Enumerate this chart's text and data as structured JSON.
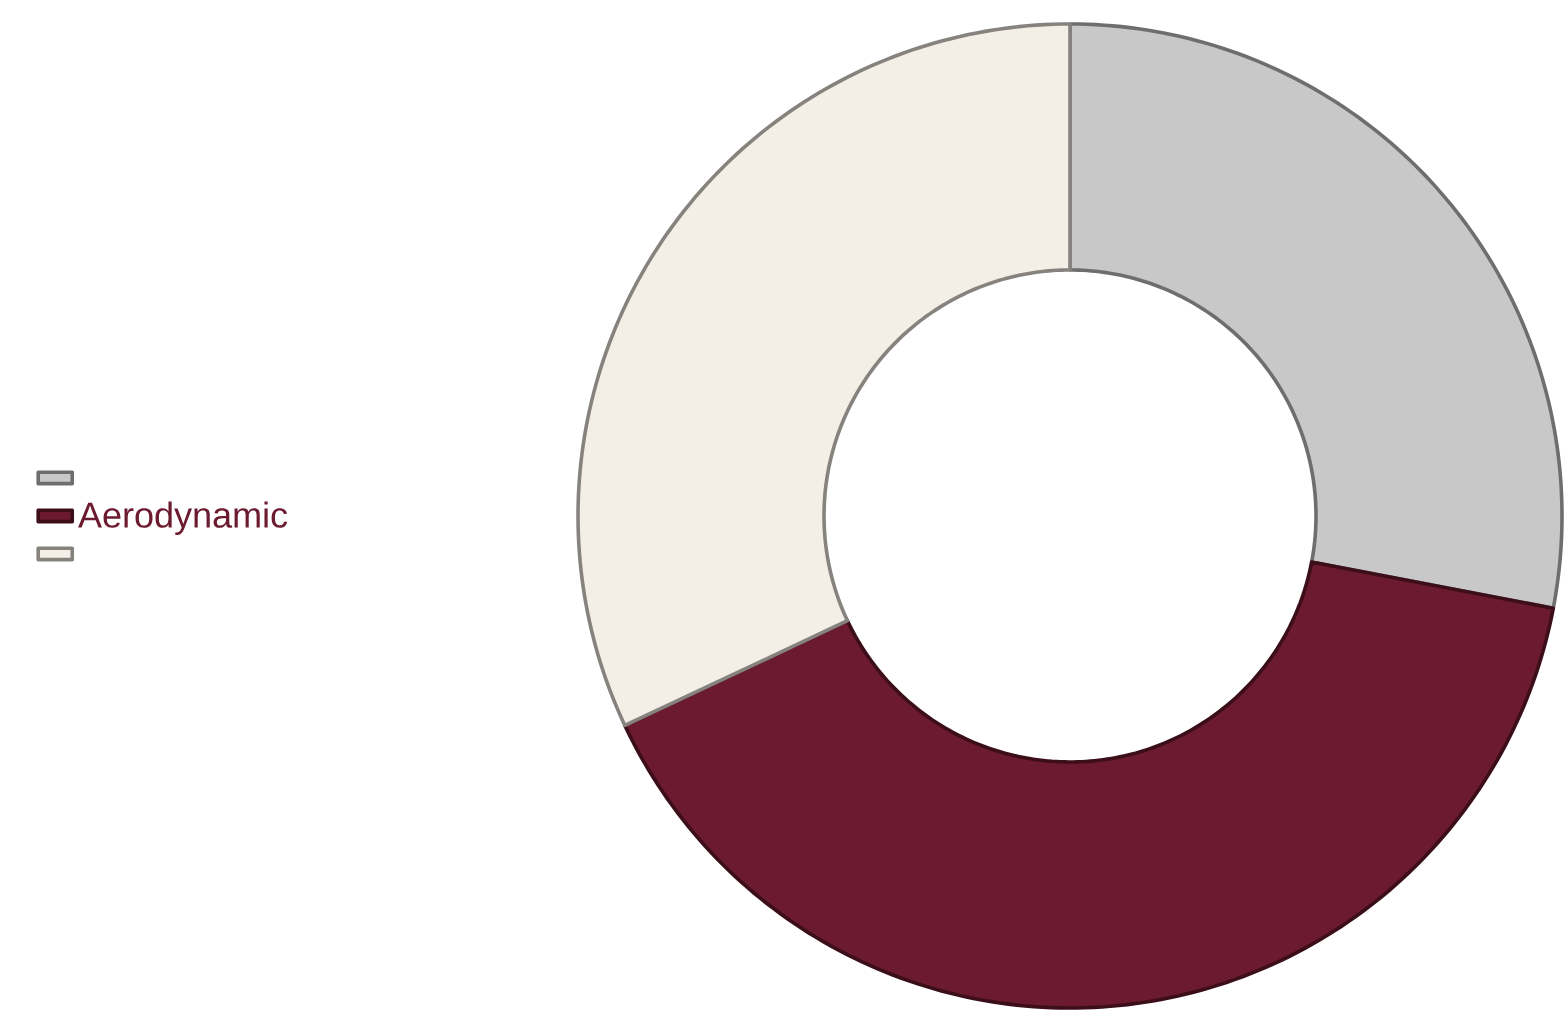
{
  "chart_data": {
    "type": "donut",
    "categories": [
      null,
      "Aerodynamic",
      null
    ],
    "values": [
      28,
      40,
      32
    ],
    "colors": [
      "#c8c8c8",
      "#6b1a30",
      "#f3efe7"
    ],
    "legend": "left"
  }
}
